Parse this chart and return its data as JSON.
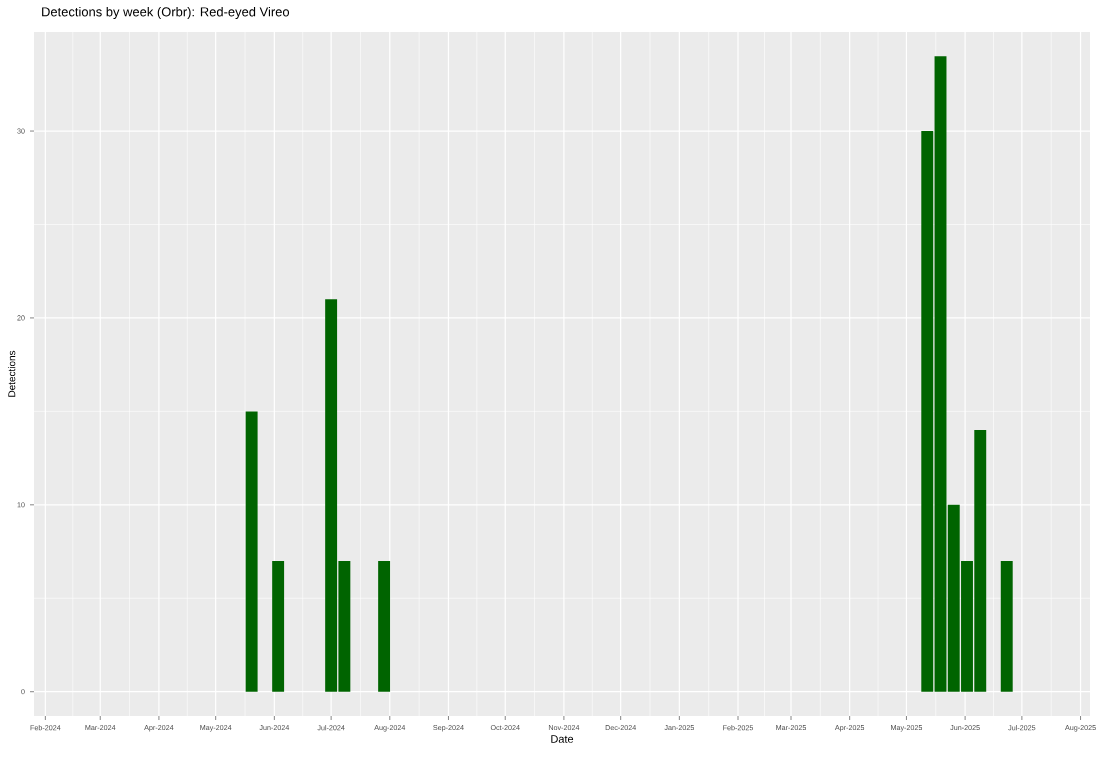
{
  "chart_data": {
    "type": "bar",
    "title": "Detections by week (Orbr): Red-eyed Vireo",
    "xlabel": "Date",
    "ylabel": "Detections",
    "x": [
      "2024-05-20",
      "2024-06-03",
      "2024-07-01",
      "2024-07-08",
      "2024-07-29",
      "2025-05-12",
      "2025-05-19",
      "2025-05-26",
      "2025-06-02",
      "2025-06-09",
      "2025-06-23"
    ],
    "values": [
      15,
      7,
      21,
      7,
      7,
      30,
      34,
      10,
      7,
      14,
      7
    ],
    "color": "#006400",
    "xlim": [
      "2024-01-26",
      "2025-08-06"
    ],
    "xticks": [
      {
        "value": "2024-02-01",
        "label": "Feb-2024"
      },
      {
        "value": "2024-03-01",
        "label": "Mar-2024"
      },
      {
        "value": "2024-04-01",
        "label": "Apr-2024"
      },
      {
        "value": "2024-05-01",
        "label": "May-2024"
      },
      {
        "value": "2024-06-01",
        "label": "Jun-2024"
      },
      {
        "value": "2024-07-01",
        "label": "Jul-2024"
      },
      {
        "value": "2024-08-01",
        "label": "Aug-2024"
      },
      {
        "value": "2024-09-01",
        "label": "Sep-2024"
      },
      {
        "value": "2024-10-01",
        "label": "Oct-2024"
      },
      {
        "value": "2024-11-01",
        "label": "Nov-2024"
      },
      {
        "value": "2024-12-01",
        "label": "Dec-2024"
      },
      {
        "value": "2025-01-01",
        "label": "Jan-2025"
      },
      {
        "value": "2025-02-01",
        "label": "Feb-2025"
      },
      {
        "value": "2025-03-01",
        "label": "Mar-2025"
      },
      {
        "value": "2025-04-01",
        "label": "Apr-2025"
      },
      {
        "value": "2025-05-01",
        "label": "May-2025"
      },
      {
        "value": "2025-06-01",
        "label": "Jun-2025"
      },
      {
        "value": "2025-07-01",
        "label": "Jul-2025"
      },
      {
        "value": "2025-08-01",
        "label": "Aug-2025"
      }
    ],
    "ylim": [
      -1.3,
      35.3
    ],
    "yticks": [
      0,
      10,
      20,
      30
    ],
    "grid": true
  }
}
